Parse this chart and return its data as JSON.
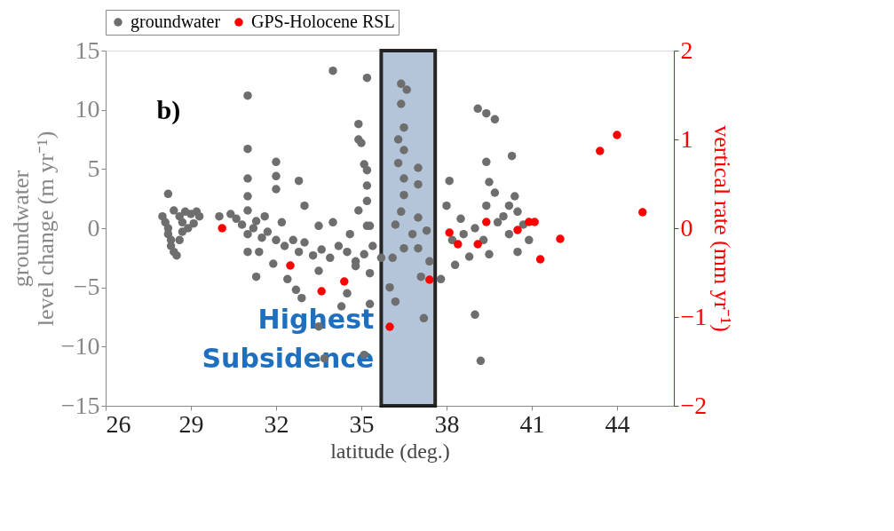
{
  "chart_data": {
    "type": "scatter",
    "xlabel": "latitude (deg.)",
    "ylabel": "groundwater\nlevel change (m yr⁻¹)",
    "y2label": "vertical rate (mm yr⁻¹)",
    "annotations": [
      "b)"
    ],
    "xlim": [
      26,
      46
    ],
    "xticks": [
      26,
      29,
      32,
      35,
      38,
      41,
      44
    ],
    "ylim": [
      -15,
      15
    ],
    "yticks": [
      -15,
      -10,
      -5,
      0,
      5,
      10,
      15
    ],
    "y2lim": [
      -2,
      2
    ],
    "y2ticks": [
      -2,
      -1,
      0,
      1,
      2
    ],
    "grid": false,
    "legend": "top",
    "marker": "circle",
    "bands": [
      {
        "axis": "x",
        "from": 35.7,
        "to": 37.6,
        "label": "Highest Subsidence",
        "color": "#a9bcd3"
      }
    ],
    "series": [
      {
        "name": "groundwater",
        "color": "#6e6e6e",
        "x": [
          28.2,
          28.0,
          28.1,
          28.2,
          28.2,
          28.3,
          28.3,
          28.4,
          28.5,
          28.4,
          28.6,
          28.7,
          28.7,
          28.8,
          29.0,
          29.2,
          29.3,
          29.1,
          28.9,
          28.6,
          30.0,
          30.4,
          30.6,
          30.8,
          31.0,
          31.0,
          31.2,
          31.5,
          31.3,
          31.7,
          32.0,
          32.3,
          32.6,
          32.8,
          33.0,
          33.3,
          33.6,
          33.9,
          34.2,
          34.5,
          34.8,
          35.1,
          35.4,
          35.7,
          32.2,
          31.6,
          33.5,
          34.0,
          34.6,
          35.3,
          31.0,
          31.0,
          31.0,
          31.0,
          32.0,
          32.0,
          32.0,
          32.8,
          33.0,
          34.0,
          35.2,
          34.9,
          34.9,
          35.0,
          35.1,
          35.2,
          35.2,
          35.2,
          34.9,
          35.2,
          31.3,
          31.0,
          31.4,
          31.9,
          32.4,
          32.7,
          32.9,
          33.5,
          33.7,
          35.1,
          35.3,
          34.5,
          34.3,
          33.5,
          34.8,
          35.3,
          36.4,
          36.6,
          36.4,
          36.5,
          36.3,
          36.5,
          36.3,
          37.0,
          36.5,
          37.0,
          36.5,
          36.4,
          37.0,
          36.8,
          36.5,
          37.0,
          37.1,
          36.0,
          36.2,
          37.2,
          37.8,
          36.1,
          37.4,
          36.2,
          37.3,
          39.1,
          39.4,
          39.7,
          39.4,
          40.3,
          38.1,
          39.5,
          39.7,
          40.4,
          38.0,
          39.4,
          40.2,
          40.5,
          38.3,
          38.8,
          39.5,
          40.5,
          39.0,
          39.2,
          38.2,
          38.6,
          39.0,
          39.3,
          39.8,
          40.2,
          40.7,
          40.9,
          38.5,
          40.0
        ],
        "values": [
          2.9,
          1.0,
          0.5,
          0,
          -0.5,
          -1.0,
          -1.5,
          -2.0,
          -2.3,
          1.5,
          1.0,
          0.5,
          -0.3,
          1.4,
          1.2,
          1.4,
          1.0,
          0.4,
          0.0,
          -1.0,
          1.0,
          1.2,
          0.8,
          0.3,
          1.5,
          -0.5,
          0.0,
          -0.8,
          0.6,
          -0.3,
          -1.0,
          -1.5,
          -1.0,
          -2.0,
          -1.2,
          -2.3,
          -1.8,
          -2.5,
          -1.5,
          -2.0,
          -2.8,
          -2.2,
          -1.5,
          -2.5,
          0.5,
          1.0,
          0.2,
          0.5,
          -0.5,
          0.2,
          11.2,
          6.7,
          4.2,
          2.7,
          5.6,
          4.4,
          3.3,
          4.0,
          1.9,
          13.3,
          12.7,
          8.8,
          7.5,
          7.2,
          5.4,
          4.9,
          3.6,
          2.3,
          1.5,
          0.2,
          -4.1,
          -2.0,
          -2.0,
          -3.0,
          -4.3,
          -5.2,
          -5.9,
          -8.3,
          -11.0,
          -10.7,
          -6.4,
          -5.5,
          -6.6,
          -3.6,
          -3.2,
          -3.8,
          12.2,
          11.7,
          10.5,
          8.5,
          7.5,
          6.6,
          5.5,
          5.1,
          4.2,
          3.7,
          2.8,
          1.4,
          0.9,
          -0.5,
          -1.7,
          -1.7,
          -4.1,
          -5.0,
          -6.2,
          -7.6,
          -4.3,
          -2.5,
          -2.8,
          0.3,
          -0.2,
          10.1,
          9.7,
          9.2,
          5.6,
          6.1,
          4.0,
          3.9,
          3.0,
          2.7,
          1.9,
          1.9,
          1.9,
          1.4,
          -3.1,
          -2.4,
          -2.2,
          -2.0,
          -7.3,
          -11.2,
          -1.0,
          -0.5,
          0.0,
          -1.0,
          0.5,
          -0.5,
          0.3,
          -1.0,
          0.8,
          1.0
        ]
      },
      {
        "name": "GPS-Holocene RSL",
        "color": "#ff0000",
        "axis": "y2",
        "x": [
          30.1,
          32.5,
          33.6,
          34.4,
          36.0,
          37.4,
          38.1,
          38.4,
          39.1,
          39.4,
          40.5,
          40.9,
          41.1,
          41.3,
          42.0,
          43.4,
          44.0,
          44.9
        ],
        "values": [
          0.0,
          -0.42,
          -0.71,
          -0.6,
          -1.11,
          -0.58,
          -0.05,
          -0.18,
          -0.18,
          0.07,
          -0.02,
          0.07,
          0.07,
          -0.35,
          -0.12,
          0.87,
          1.05,
          0.18
        ]
      }
    ]
  }
}
